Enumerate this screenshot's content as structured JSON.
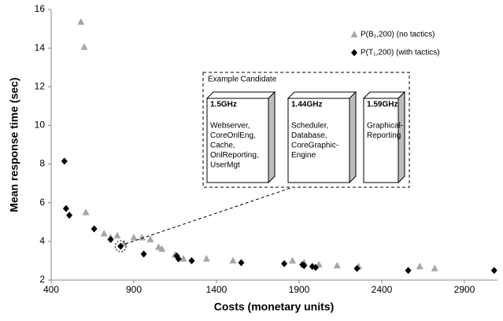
{
  "chart_data": {
    "type": "scatter",
    "x_label": "Costs (monetary units)",
    "y_label": "Mean response time (sec)",
    "xlim": [
      400,
      3100
    ],
    "xticks": [
      400,
      900,
      1400,
      1900,
      2400,
      2900
    ],
    "ylim": [
      2,
      16
    ],
    "yticks": [
      2,
      4,
      6,
      8,
      10,
      12,
      14,
      16
    ],
    "legend": "top-right",
    "series": [
      {
        "name": "P(B₁,200) (no tactics)",
        "color": "#a6a6a6",
        "marker": "triangle",
        "x": [
          580,
          600,
          610,
          720,
          760,
          800,
          840,
          900,
          950,
          1000,
          1050,
          1070,
          1150,
          1200,
          1340,
          1500,
          1860,
          1930,
          2020,
          2130,
          2260,
          2630,
          2720
        ],
        "values": [
          15.35,
          14.05,
          5.5,
          4.4,
          4.2,
          4.3,
          3.9,
          4.2,
          4.2,
          4.1,
          3.7,
          3.6,
          3.3,
          3.1,
          3.1,
          3.0,
          3.0,
          2.9,
          2.8,
          2.75,
          2.7,
          2.7,
          2.6
        ]
      },
      {
        "name": "P(T₁,200) (with tactics)",
        "color": "#000000",
        "marker": "diamond",
        "x": [
          480,
          490,
          510,
          660,
          760,
          820,
          960,
          1160,
          1170,
          1250,
          1550,
          1810,
          1920,
          1930,
          1980,
          2000,
          2250,
          2560,
          3080
        ],
        "values": [
          8.15,
          5.7,
          5.35,
          4.65,
          4.1,
          3.75,
          3.35,
          3.25,
          3.1,
          3.0,
          2.9,
          2.85,
          2.8,
          2.75,
          2.7,
          2.65,
          2.6,
          2.5,
          2.5
        ]
      }
    ],
    "annotation": {
      "title": "Example Candidate",
      "nodes": [
        {
          "freq": "1.5GHz",
          "components": [
            "Webserver,",
            "CoreOnlEng,",
            "Cache,",
            "OnlReporting,",
            "UserMgt"
          ]
        },
        {
          "freq": "1.44GHz",
          "components": [
            "Scheduler,",
            "Database,",
            "CoreGraphic-",
            "Engine"
          ]
        },
        {
          "freq": "1.59GHz",
          "components": [
            "Graphical-",
            "Reporting"
          ]
        }
      ]
    }
  }
}
